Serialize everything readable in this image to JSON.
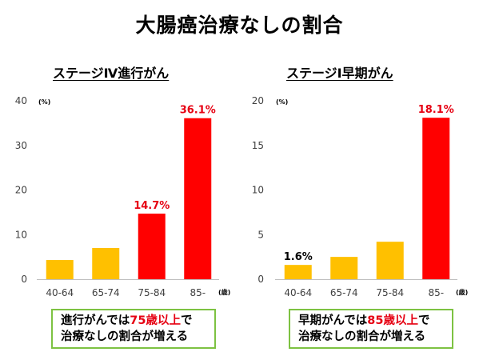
{
  "title": "大腸癌治療なしの割合",
  "colors": {
    "normal": "#ffc000",
    "highlight": "#ff0000",
    "label_red": "#e60012",
    "callout_border": "#7dc242"
  },
  "chart_data": [
    {
      "type": "bar",
      "title": "ステージⅣ進行がん",
      "categories": [
        "40-64",
        "65-74",
        "75-84",
        "85-"
      ],
      "values": [
        4.3,
        7.0,
        14.7,
        36.1
      ],
      "highlight": [
        false,
        false,
        true,
        true
      ],
      "data_labels": [
        "",
        "",
        "14.7%",
        "36.1%"
      ],
      "yunit": "(%)",
      "xunit": "(歳)",
      "ylim": [
        0,
        40
      ],
      "yticks": [
        0,
        10,
        20,
        30,
        40
      ],
      "grid": false,
      "callout": {
        "line1_a": "進行がんでは",
        "line1_hl": "75歳以上",
        "line1_b": "で",
        "line2": "治療なしの割合が増える"
      }
    },
    {
      "type": "bar",
      "title": "ステージⅠ早期がん",
      "categories": [
        "40-64",
        "65-74",
        "75-84",
        "85-"
      ],
      "values": [
        1.6,
        2.5,
        4.2,
        18.1
      ],
      "highlight": [
        false,
        false,
        false,
        true
      ],
      "data_labels": [
        "1.6%",
        "",
        "",
        "18.1%"
      ],
      "yunit": "(%)",
      "xunit": "(歳)",
      "ylim": [
        0,
        20
      ],
      "yticks": [
        0,
        5,
        10,
        15,
        20
      ],
      "grid": false,
      "callout": {
        "line1_a": "早期がんでは",
        "line1_hl": "85歳以上",
        "line1_b": "で",
        "line2": "治療なしの割合が増える"
      }
    }
  ]
}
